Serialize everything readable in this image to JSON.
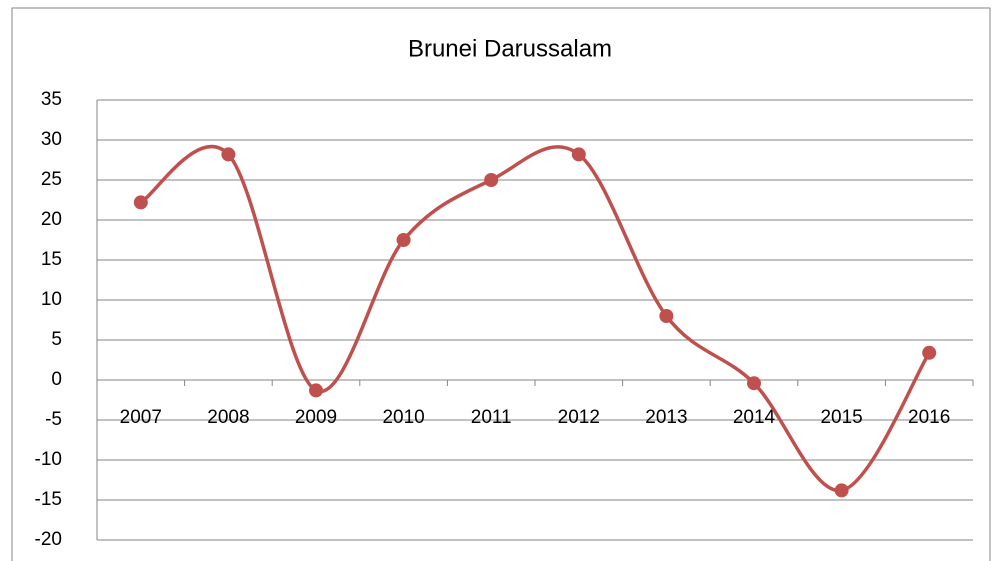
{
  "chart_data": {
    "type": "line",
    "title": "Brunei Darussalam",
    "categories": [
      "2007",
      "2008",
      "2009",
      "2010",
      "2011",
      "2012",
      "2013",
      "2014",
      "2015",
      "2016"
    ],
    "series": [
      {
        "name": "Brunei Darussalam",
        "color": "#c0504d",
        "values": [
          22.2,
          28.2,
          -1.3,
          17.5,
          25,
          28.2,
          8,
          -0.4,
          -13.8,
          3.4
        ]
      }
    ],
    "ylim": [
      -20,
      35
    ],
    "yticks": [
      -20,
      -15,
      -10,
      -5,
      0,
      5,
      10,
      15,
      20,
      25,
      30,
      35
    ],
    "grid": true,
    "smooth": true
  }
}
